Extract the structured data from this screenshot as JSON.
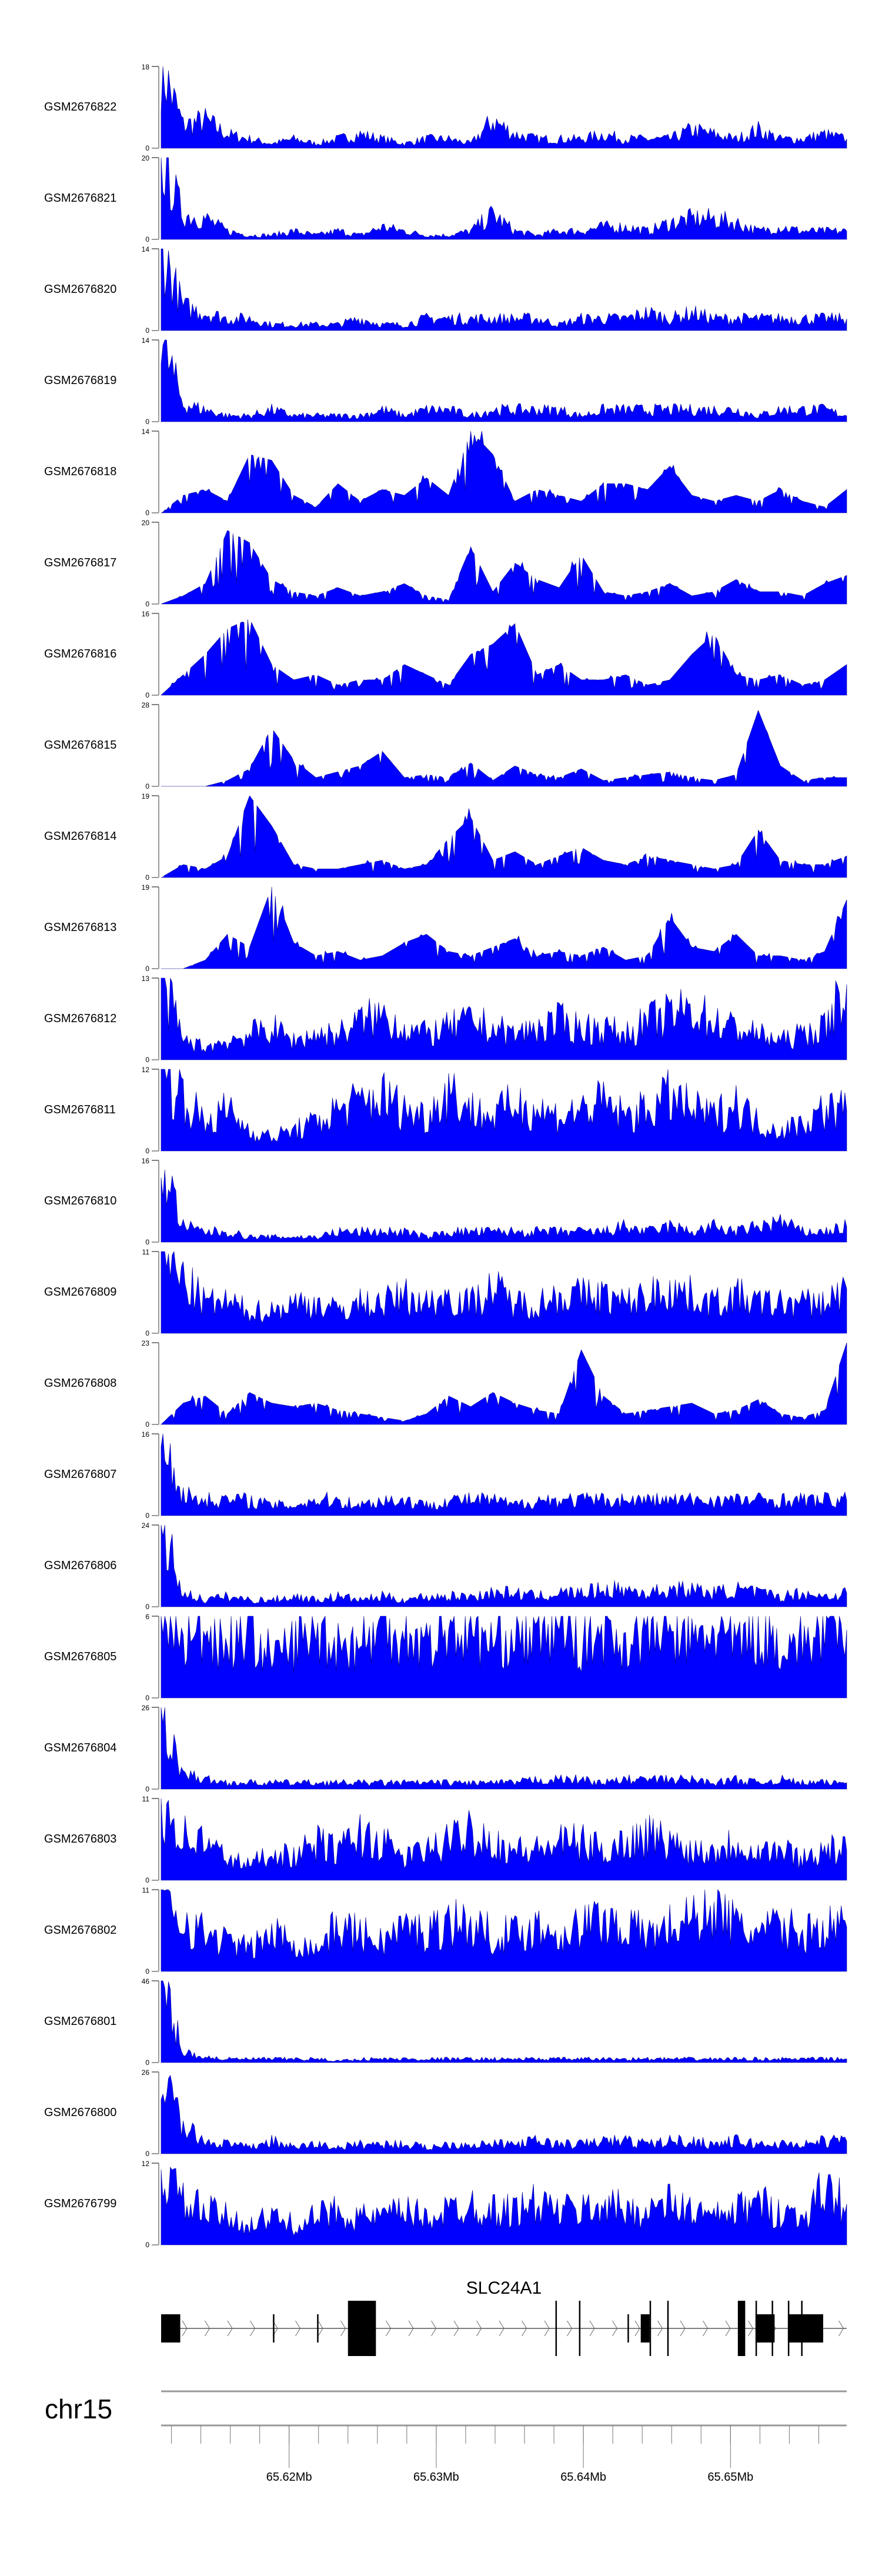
{
  "chart_data": {
    "type": "area",
    "title": "",
    "fill_color": "#0000ff",
    "x_range_mb": [
      65.6113,
      65.6579
    ],
    "tracks": [
      {
        "name": "GSM2676822",
        "ymax": 18,
        "values": [
          18,
          5,
          6,
          3,
          2,
          1,
          2,
          1,
          2,
          3,
          2,
          1,
          2,
          2,
          1,
          6,
          3,
          2,
          2,
          2,
          3,
          2,
          2,
          2,
          4,
          3,
          2,
          4,
          2,
          2,
          3,
          2
        ]
      },
      {
        "name": "GSM2676821",
        "ymax": 20,
        "values": [
          20,
          6,
          5,
          2,
          1,
          1,
          2,
          1,
          2,
          1,
          3,
          2,
          1,
          1,
          2,
          6,
          2,
          1,
          2,
          2,
          3,
          3,
          2,
          4,
          5,
          5,
          4,
          2,
          3,
          2,
          2,
          2
        ]
      },
      {
        "name": "GSM2676820",
        "ymax": 14,
        "values": [
          14,
          4,
          3,
          2,
          2,
          1,
          1,
          1,
          1,
          2,
          1,
          1,
          2,
          2,
          2,
          2,
          2,
          2,
          1,
          2,
          2,
          2,
          3,
          2,
          3,
          2,
          2,
          2,
          2,
          2,
          2,
          2
        ]
      },
      {
        "name": "GSM2676819",
        "ymax": 14,
        "values": [
          14,
          3,
          2,
          1,
          1,
          2,
          1,
          1,
          1,
          1,
          2,
          1,
          2,
          2,
          1,
          2,
          2,
          2,
          2,
          1,
          2,
          2,
          2,
          2,
          2,
          2,
          2,
          1,
          2,
          2,
          2,
          1
        ]
      },
      {
        "name": "GSM2676818",
        "ymax": 14,
        "values": [
          0,
          3,
          4,
          2,
          10,
          9,
          3,
          1,
          5,
          2,
          4,
          3,
          6,
          3,
          14,
          10,
          2,
          4,
          3,
          2,
          5,
          5,
          4,
          8,
          3,
          2,
          3,
          2,
          4,
          2,
          1,
          4
        ]
      },
      {
        "name": "GSM2676817",
        "ymax": 20,
        "values": [
          0,
          2,
          5,
          18,
          15,
          6,
          3,
          2,
          4,
          2,
          3,
          5,
          2,
          1,
          14,
          3,
          10,
          6,
          4,
          12,
          3,
          2,
          3,
          5,
          2,
          3,
          6,
          3,
          3,
          2,
          5,
          7
        ]
      },
      {
        "name": "GSM2676816",
        "ymax": 16,
        "values": [
          0,
          4,
          8,
          13,
          15,
          6,
          3,
          4,
          2,
          3,
          3,
          6,
          4,
          2,
          8,
          10,
          14,
          4,
          6,
          3,
          3,
          4,
          2,
          3,
          8,
          12,
          4,
          3,
          4,
          2,
          3,
          6
        ]
      },
      {
        "name": "GSM2676815",
        "ymax": 28,
        "values": [
          0,
          0,
          0,
          2,
          6,
          20,
          9,
          3,
          5,
          7,
          12,
          3,
          4,
          3,
          8,
          2,
          7,
          4,
          3,
          6,
          2,
          3,
          4,
          5,
          3,
          2,
          4,
          26,
          7,
          2,
          3,
          3
        ]
      },
      {
        "name": "GSM2676814",
        "ymax": 19,
        "values": [
          0,
          3,
          2,
          5,
          19,
          12,
          3,
          2,
          2,
          3,
          4,
          2,
          3,
          9,
          14,
          4,
          6,
          3,
          5,
          7,
          4,
          3,
          5,
          4,
          3,
          2,
          3,
          11,
          4,
          3,
          3,
          5
        ]
      },
      {
        "name": "GSM2676813",
        "ymax": 19,
        "values": [
          0,
          0,
          2,
          8,
          5,
          19,
          6,
          3,
          4,
          2,
          3,
          6,
          8,
          4,
          3,
          5,
          7,
          3,
          4,
          3,
          5,
          2,
          3,
          12,
          5,
          4,
          8,
          3,
          3,
          2,
          4,
          16
        ]
      },
      {
        "name": "GSM2676812",
        "ymax": 13,
        "values": [
          13,
          3,
          2,
          3,
          4,
          5,
          3,
          4,
          4,
          6,
          7,
          5,
          4,
          5,
          6,
          5,
          4,
          5,
          6,
          5,
          5,
          4,
          6,
          7,
          8,
          6,
          5,
          4,
          3,
          4,
          5,
          12
        ]
      },
      {
        "name": "GSM2676811",
        "ymax": 12,
        "values": [
          12,
          8,
          4,
          6,
          3,
          2,
          3,
          4,
          6,
          7,
          8,
          6,
          5,
          9,
          6,
          5,
          7,
          6,
          5,
          6,
          7,
          5,
          6,
          8,
          6,
          5,
          7,
          4,
          3,
          4,
          6,
          6
        ]
      },
      {
        "name": "GSM2676810",
        "ymax": 16,
        "values": [
          16,
          3,
          2,
          2,
          1,
          1,
          1,
          1,
          2,
          2,
          2,
          2,
          1,
          2,
          2,
          2,
          2,
          2,
          2,
          2,
          2,
          3,
          2,
          3,
          2,
          3,
          2,
          3,
          4,
          2,
          2,
          3
        ]
      },
      {
        "name": "GSM2676809",
        "ymax": 11,
        "values": [
          11,
          7,
          4,
          4,
          3,
          3,
          4,
          4,
          3,
          4,
          4,
          5,
          4,
          5,
          4,
          6,
          4,
          4,
          5,
          5,
          5,
          4,
          5,
          6,
          5,
          4,
          5,
          4,
          4,
          4,
          4,
          6
        ]
      },
      {
        "name": "GSM2676808",
        "ymax": 23,
        "values": [
          0,
          6,
          8,
          3,
          9,
          6,
          5,
          6,
          4,
          3,
          2,
          1,
          3,
          8,
          5,
          9,
          6,
          4,
          3,
          21,
          8,
          3,
          4,
          5,
          6,
          3,
          4,
          7,
          3,
          2,
          4,
          23
        ]
      },
      {
        "name": "GSM2676807",
        "ymax": 16,
        "values": [
          16,
          4,
          3,
          3,
          3,
          2,
          2,
          3,
          3,
          2,
          3,
          3,
          2,
          3,
          3,
          3,
          2,
          3,
          3,
          3,
          3,
          3,
          3,
          3,
          3,
          3,
          3,
          3,
          3,
          3,
          3,
          3
        ]
      },
      {
        "name": "GSM2676806",
        "ymax": 24,
        "values": [
          24,
          4,
          2,
          3,
          2,
          2,
          3,
          2,
          3,
          2,
          3,
          2,
          3,
          3,
          3,
          4,
          4,
          3,
          4,
          4,
          5,
          5,
          4,
          5,
          5,
          4,
          5,
          4,
          3,
          4,
          3,
          4
        ]
      },
      {
        "name": "GSM2676805",
        "ymax": 6,
        "values": [
          6,
          4,
          5,
          4,
          5,
          3,
          4,
          5,
          4,
          4,
          5,
          5,
          4,
          5,
          5,
          4,
          5,
          4,
          6,
          4,
          5,
          4,
          5,
          5,
          4,
          5,
          4,
          5,
          4,
          4,
          5,
          5
        ]
      },
      {
        "name": "GSM2676804",
        "ymax": 26,
        "values": [
          26,
          5,
          3,
          2,
          2,
          2,
          2,
          2,
          2,
          2,
          2,
          2,
          2,
          2,
          2,
          2,
          2,
          3,
          3,
          3,
          2,
          3,
          3,
          3,
          3,
          2,
          3,
          2,
          3,
          2,
          2,
          2
        ]
      },
      {
        "name": "GSM2676803",
        "ymax": 11,
        "values": [
          11,
          6,
          5,
          3,
          2,
          4,
          3,
          5,
          4,
          6,
          5,
          3,
          4,
          5,
          7,
          5,
          4,
          4,
          5,
          5,
          4,
          5,
          6,
          5,
          4,
          4,
          5,
          4,
          4,
          3,
          4,
          4
        ]
      },
      {
        "name": "GSM2676802",
        "ymax": 11,
        "values": [
          11,
          7,
          5,
          4,
          3,
          5,
          4,
          3,
          6,
          5,
          4,
          6,
          5,
          7,
          6,
          5,
          5,
          6,
          5,
          6,
          7,
          6,
          5,
          6,
          7,
          9,
          6,
          5,
          6,
          5,
          6,
          6
        ]
      },
      {
        "name": "GSM2676801",
        "ymax": 46,
        "values": [
          46,
          6,
          3,
          2,
          2,
          2,
          2,
          2,
          1,
          2,
          2,
          2,
          2,
          2,
          2,
          2,
          2,
          2,
          2,
          2,
          2,
          2,
          2,
          2,
          2,
          2,
          2,
          2,
          2,
          2,
          2,
          2
        ]
      },
      {
        "name": "GSM2676800",
        "ymax": 26,
        "values": [
          26,
          8,
          4,
          3,
          2,
          4,
          2,
          3,
          2,
          3,
          3,
          3,
          2,
          3,
          3,
          3,
          3,
          4,
          3,
          3,
          4,
          4,
          3,
          4,
          4,
          3,
          4,
          3,
          3,
          3,
          4,
          4
        ]
      },
      {
        "name": "GSM2676799",
        "ymax": 12,
        "values": [
          12,
          6,
          5,
          4,
          3,
          4,
          3,
          4,
          5,
          4,
          4,
          5,
          4,
          5,
          6,
          5,
          5,
          6,
          5,
          5,
          6,
          5,
          5,
          6,
          5,
          4,
          5,
          6,
          5,
          4,
          8,
          6
        ]
      }
    ],
    "ymin_label": "0",
    "gene": {
      "name": "SLC24A1",
      "strand": "+",
      "exons": [
        {
          "start": 65.6113,
          "end": 65.6126,
          "kind": "utr"
        },
        {
          "start": 65.6189,
          "end": 65.6189,
          "kind": "utr"
        },
        {
          "start": 65.6219,
          "end": 65.6219,
          "kind": "utr"
        },
        {
          "start": 65.624,
          "end": 65.6259,
          "kind": "cds"
        },
        {
          "start": 65.6381,
          "end": 65.6381,
          "kind": "cds"
        },
        {
          "start": 65.6397,
          "end": 65.6397,
          "kind": "cds"
        },
        {
          "start": 65.643,
          "end": 65.643,
          "kind": "utr"
        },
        {
          "start": 65.6439,
          "end": 65.6445,
          "kind": "utr"
        },
        {
          "start": 65.6445,
          "end": 65.6445,
          "kind": "cds"
        },
        {
          "start": 65.6457,
          "end": 65.6457,
          "kind": "cds"
        },
        {
          "start": 65.6505,
          "end": 65.651,
          "kind": "cds"
        },
        {
          "start": 65.6517,
          "end": 65.653,
          "kind": "utr"
        },
        {
          "start": 65.6517,
          "end": 65.6517,
          "kind": "cds"
        },
        {
          "start": 65.6528,
          "end": 65.6528,
          "kind": "cds"
        },
        {
          "start": 65.6539,
          "end": 65.6563,
          "kind": "utr"
        },
        {
          "start": 65.6539,
          "end": 65.6539,
          "kind": "cds"
        },
        {
          "start": 65.6548,
          "end": 65.6548,
          "kind": "cds"
        }
      ]
    },
    "axis": {
      "chromosome": "chr15",
      "minor_tick_step_mb": 0.002,
      "major_ticks": [
        {
          "value": 65.62,
          "label": "65.62Mb"
        },
        {
          "value": 65.63,
          "label": "65.63Mb"
        },
        {
          "value": 65.64,
          "label": "65.64Mb"
        },
        {
          "value": 65.65,
          "label": "65.65Mb"
        }
      ]
    }
  }
}
